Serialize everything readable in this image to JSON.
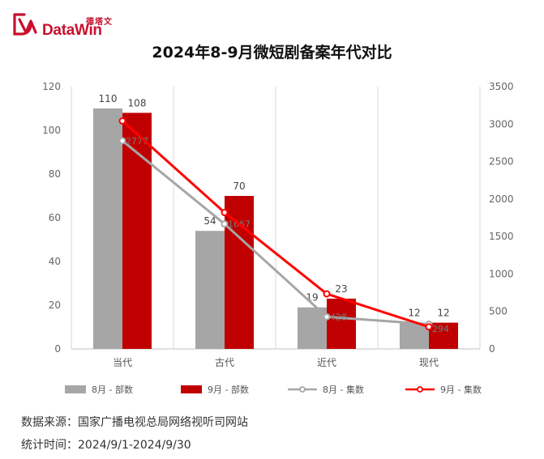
{
  "brand": {
    "name_en": "DataWin",
    "name_cn": "德塔文",
    "color": "#c8102e"
  },
  "chart_data": {
    "type": "bar+line",
    "title": "2024年8-9月微短剧备案年代对比",
    "categories": [
      "当代",
      "古代",
      "近代",
      "现代"
    ],
    "left_axis": {
      "min": 0,
      "max": 120,
      "step": 20
    },
    "right_axis": {
      "min": 0,
      "max": 3500,
      "step": 500
    },
    "bar_series": [
      {
        "name": "8月 - 部数",
        "values": [
          110,
          54,
          19,
          12
        ],
        "color": "#a6a6a6",
        "axis": "left"
      },
      {
        "name": "9月 - 部数",
        "values": [
          108,
          70,
          23,
          12
        ],
        "color": "#c00000",
        "axis": "left"
      }
    ],
    "line_series": [
      {
        "name": "8月 - 集数",
        "values": [
          2777,
          1667,
          428,
          330
        ],
        "labels": [
          "2777",
          "1667",
          "428",
          ""
        ],
        "color": "#a6a6a6",
        "axis": "right"
      },
      {
        "name": "9月 - 集数",
        "values": [
          3042,
          1820,
          735,
          294
        ],
        "labels": [
          "",
          "",
          "",
          "294"
        ],
        "color": "#ff0000",
        "axis": "right"
      }
    ],
    "grid": "vertical-category-separators",
    "legend_position": "bottom"
  },
  "footer": {
    "source": "数据来源：国家广播电视总局网络视听司网站",
    "period": "统计时间：2024/9/1-2024/9/30"
  }
}
